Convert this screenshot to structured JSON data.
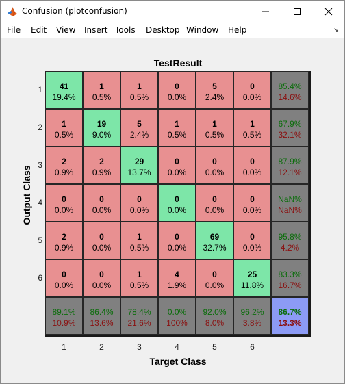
{
  "window": {
    "title": "Confusion (plotconfusion)",
    "icon": "matlab-icon",
    "controls": [
      "minimize-icon",
      "maximize-icon",
      "close-icon"
    ]
  },
  "menu": {
    "items": [
      {
        "label": "File",
        "ul": "F",
        "rest": "ile"
      },
      {
        "label": "Edit",
        "ul": "E",
        "rest": "dit"
      },
      {
        "label": "View",
        "ul": "V",
        "rest": "iew"
      },
      {
        "label": "Insert",
        "ul": "I",
        "rest": "nsert"
      },
      {
        "label": "Tools",
        "ul": "T",
        "rest": "ools"
      },
      {
        "label": "Desktop",
        "ul": "D",
        "rest": "esktop"
      },
      {
        "label": "Window",
        "ul": "W",
        "rest": "indow"
      },
      {
        "label": "Help",
        "ul": "H",
        "rest": "elp"
      }
    ],
    "overflow_icon": "dock-arrow-icon"
  },
  "colors": {
    "correct": "#7de6a8",
    "incorrect": "#e89091",
    "summary": "#808080",
    "overall": "#8c9bf5",
    "accuracy_text": "#0b6d0b",
    "error_text": "#8a1010"
  },
  "chart_data": {
    "type": "table",
    "title": "TestResult",
    "xlabel": "Target Class",
    "ylabel": "Output Class",
    "x_ticks": [
      "1",
      "2",
      "3",
      "4",
      "5",
      "6"
    ],
    "y_ticks": [
      "1",
      "2",
      "3",
      "4",
      "5",
      "6"
    ],
    "counts": [
      [
        41,
        1,
        1,
        0,
        5,
        0
      ],
      [
        1,
        19,
        5,
        1,
        1,
        1
      ],
      [
        2,
        2,
        29,
        0,
        0,
        0
      ],
      [
        0,
        0,
        0,
        0,
        0,
        0
      ],
      [
        2,
        0,
        1,
        0,
        69,
        0
      ],
      [
        0,
        0,
        1,
        4,
        0,
        25
      ]
    ],
    "percents": [
      [
        "19.4%",
        "0.5%",
        "0.5%",
        "0.0%",
        "2.4%",
        "0.0%"
      ],
      [
        "0.5%",
        "9.0%",
        "2.4%",
        "0.5%",
        "0.5%",
        "0.5%"
      ],
      [
        "0.9%",
        "0.9%",
        "13.7%",
        "0.0%",
        "0.0%",
        "0.0%"
      ],
      [
        "0.0%",
        "0.0%",
        "0.0%",
        "0.0%",
        "0.0%",
        "0.0%"
      ],
      [
        "0.9%",
        "0.0%",
        "0.5%",
        "0.0%",
        "32.7%",
        "0.0%"
      ],
      [
        "0.0%",
        "0.0%",
        "0.5%",
        "1.9%",
        "0.0%",
        "11.8%"
      ]
    ],
    "row_summary": [
      [
        "85.4%",
        "14.6%"
      ],
      [
        "67.9%",
        "32.1%"
      ],
      [
        "87.9%",
        "12.1%"
      ],
      [
        "NaN%",
        "NaN%"
      ],
      [
        "95.8%",
        "4.2%"
      ],
      [
        "83.3%",
        "16.7%"
      ]
    ],
    "col_summary": [
      [
        "89.1%",
        "10.9%"
      ],
      [
        "86.4%",
        "13.6%"
      ],
      [
        "78.4%",
        "21.6%"
      ],
      [
        "0.0%",
        "100%"
      ],
      [
        "92.0%",
        "8.0%"
      ],
      [
        "96.2%",
        "3.8%"
      ]
    ],
    "overall": [
      "86.7%",
      "13.3%"
    ]
  }
}
